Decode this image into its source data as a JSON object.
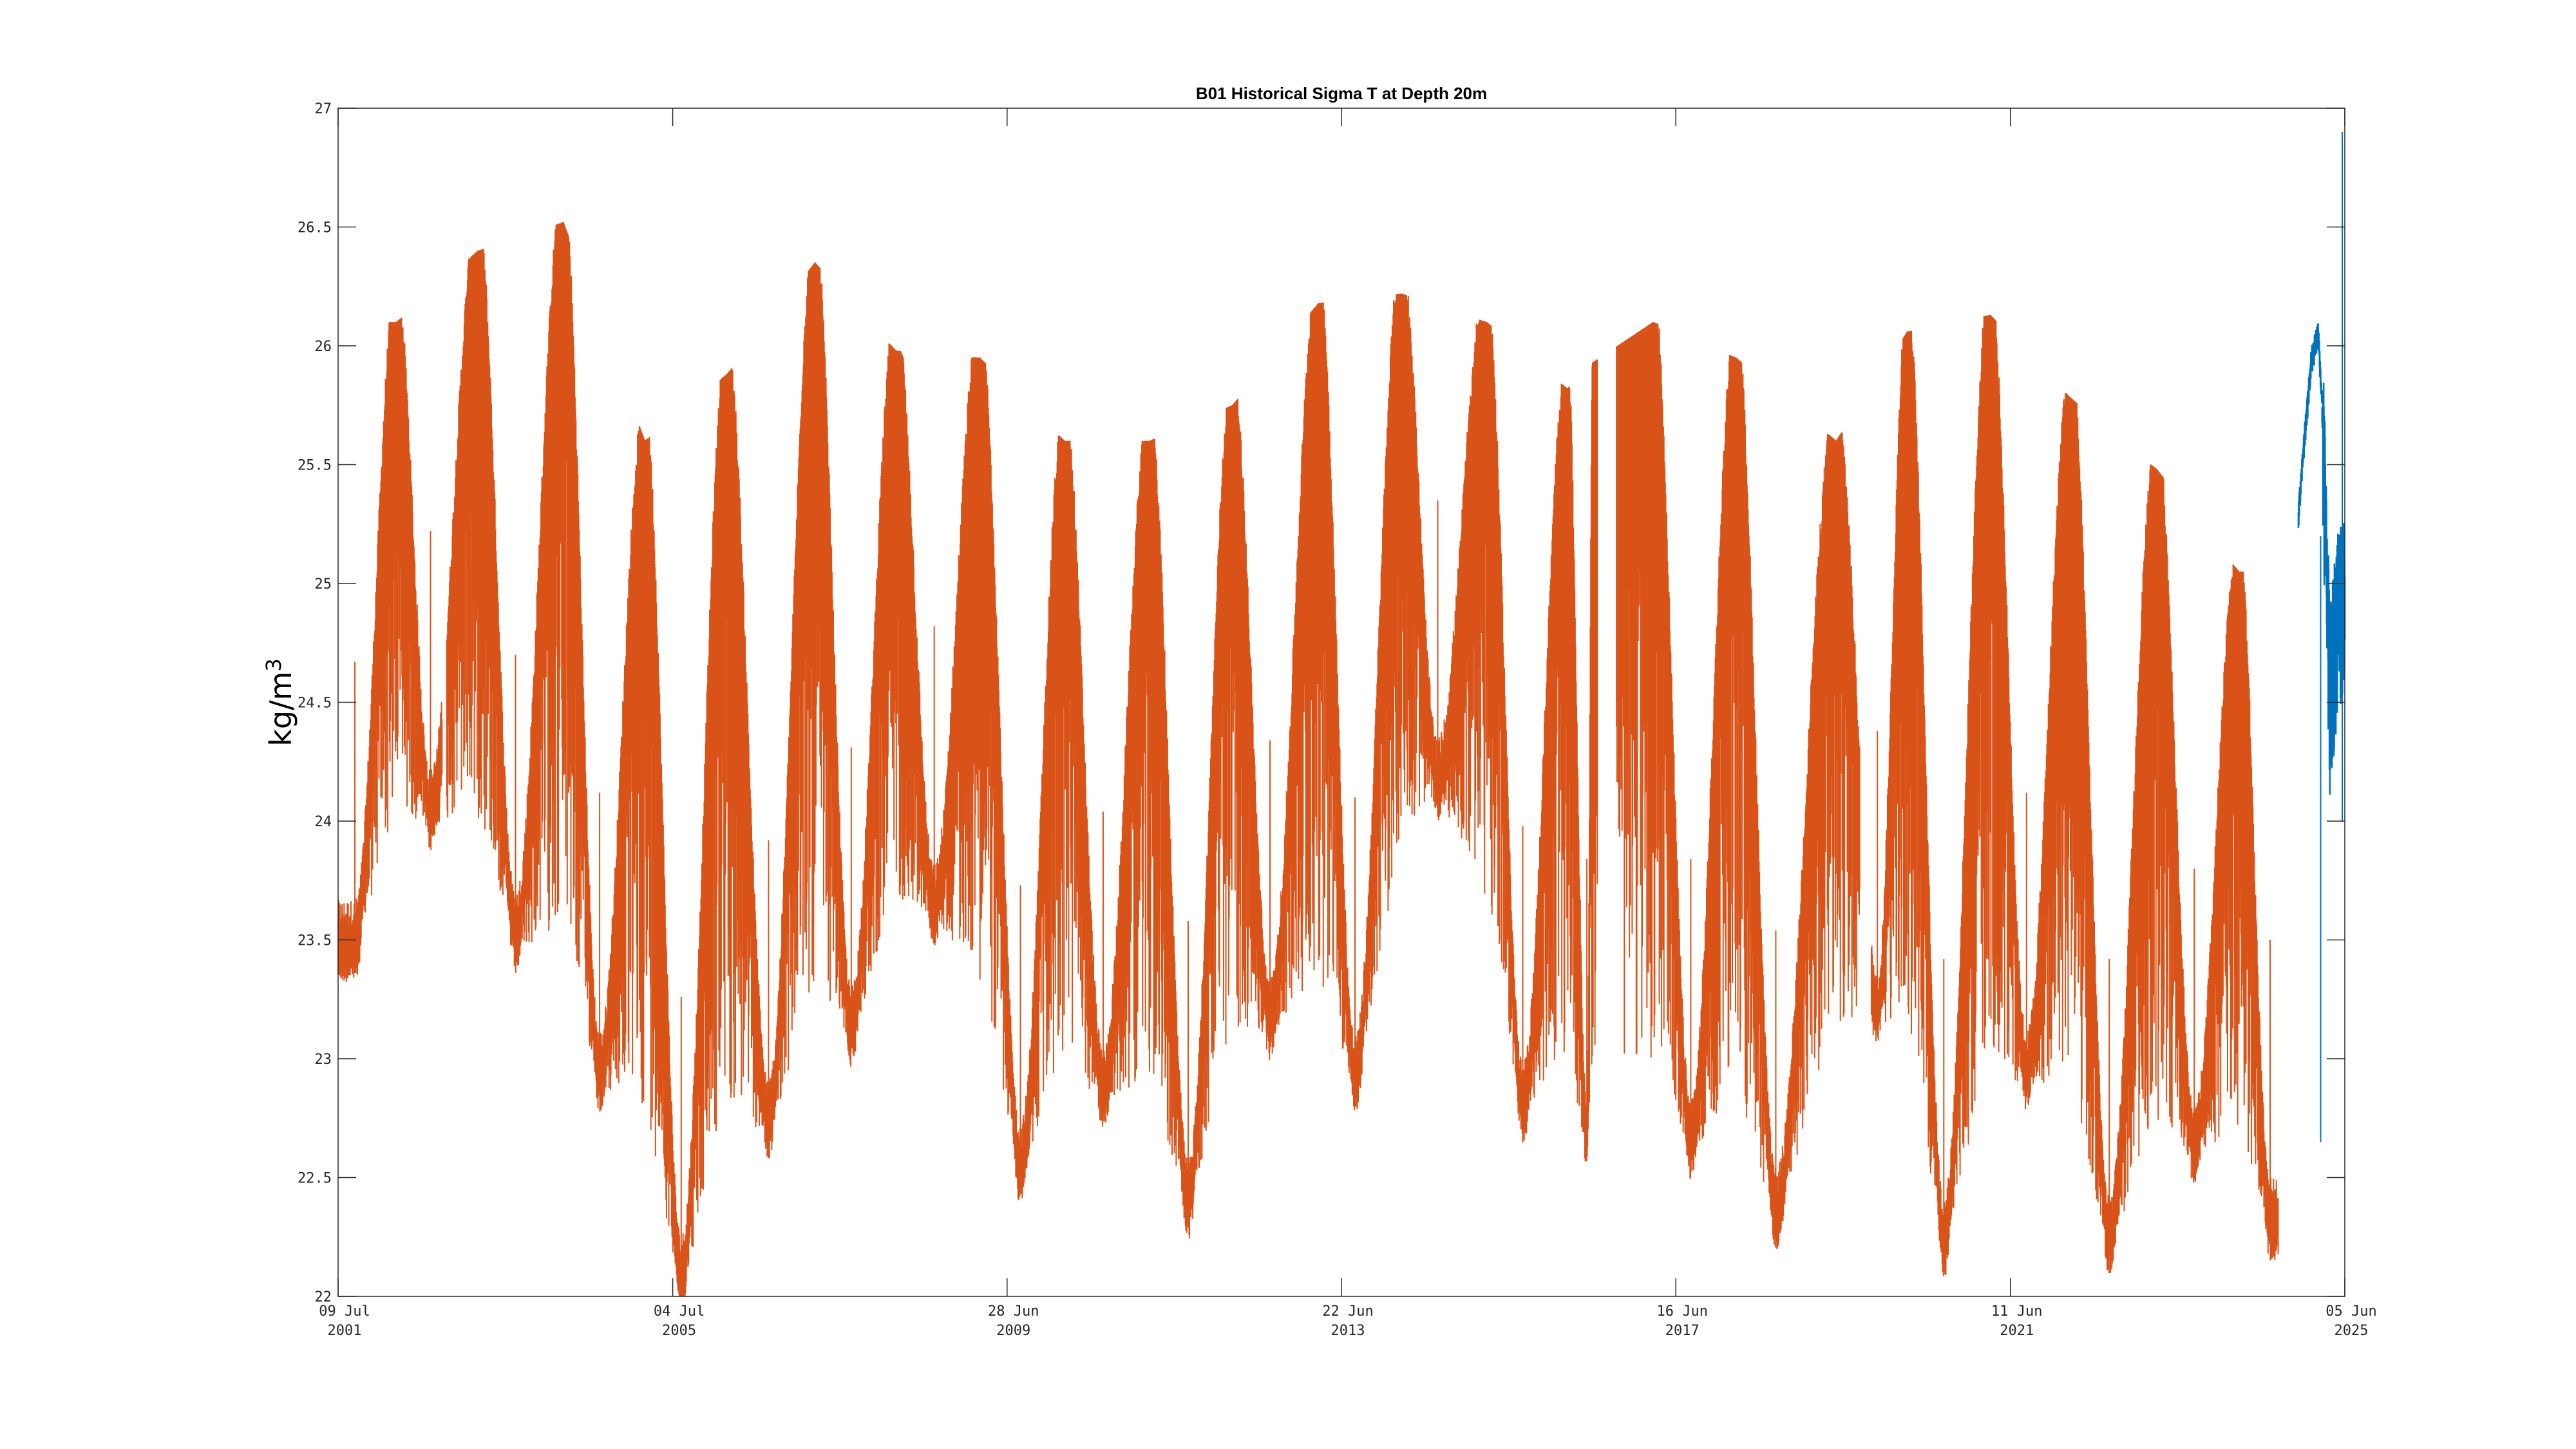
{
  "chart_data": {
    "type": "line",
    "title": "B01 Historical Sigma T at Depth 20m",
    "xlabel": "",
    "ylabel": "kg/m",
    "ylabel_superscript": "3",
    "ylim": [
      22,
      27
    ],
    "xlim": [
      "2001-07-09",
      "2025-06-05"
    ],
    "yticks": [
      "22",
      "22.5",
      "23",
      "23.5",
      "24",
      "24.5",
      "25",
      "25.5",
      "26",
      "26.5",
      "27"
    ],
    "xticks": [
      {
        "date": "2001-07-09",
        "line1": "09 Jul",
        "line2": "2001"
      },
      {
        "date": "2005-07-04",
        "line1": "04 Jul",
        "line2": "2005"
      },
      {
        "date": "2009-06-28",
        "line1": "28 Jun",
        "line2": "2009"
      },
      {
        "date": "2013-06-22",
        "line1": "22 Jun",
        "line2": "2013"
      },
      {
        "date": "2017-06-16",
        "line1": "16 Jun",
        "line2": "2017"
      },
      {
        "date": "2021-06-11",
        "line1": "11 Jun",
        "line2": "2021"
      },
      {
        "date": "2025-06-05",
        "line1": "05 Jun",
        "line2": "2025"
      }
    ],
    "grid": false,
    "series": [
      {
        "color": "#d95319",
        "description": "historical record, seasonal cycle",
        "segments": [
          {
            "start": "2001-07-09",
            "end": "2002-10-05"
          },
          {
            "start": "2002-10-25",
            "end": "2016-07-10"
          },
          {
            "start": "2016-10-01",
            "end": "2019-08-25"
          },
          {
            "start": "2019-10-15",
            "end": "2024-08-20"
          }
        ],
        "annual_max": [
          {
            "date": "2002-03-20",
            "value": 26.1
          },
          {
            "date": "2003-03-10",
            "value": 26.4
          },
          {
            "date": "2004-03-15",
            "value": 26.52
          },
          {
            "date": "2005-03-05",
            "value": 25.6
          },
          {
            "date": "2006-02-25",
            "value": 25.88
          },
          {
            "date": "2007-03-15",
            "value": 26.35
          },
          {
            "date": "2008-03-01",
            "value": 25.98
          },
          {
            "date": "2009-03-01",
            "value": 25.95
          },
          {
            "date": "2010-03-05",
            "value": 25.6
          },
          {
            "date": "2011-03-10",
            "value": 25.6
          },
          {
            "date": "2012-03-05",
            "value": 25.75
          },
          {
            "date": "2013-03-15",
            "value": 26.18
          },
          {
            "date": "2014-03-10",
            "value": 26.22
          },
          {
            "date": "2015-03-15",
            "value": 26.1
          },
          {
            "date": "2016-03-01",
            "value": 25.82
          },
          {
            "date": "2016-06-20",
            "value": 25.93
          },
          {
            "date": "2017-03-10",
            "value": 26.1
          },
          {
            "date": "2018-03-05",
            "value": 25.95
          },
          {
            "date": "2019-05-15",
            "value": 25.6
          },
          {
            "date": "2020-03-20",
            "value": 26.06
          },
          {
            "date": "2021-03-15",
            "value": 26.13
          },
          {
            "date": "2022-03-01",
            "value": 25.78
          },
          {
            "date": "2023-03-10",
            "value": 25.48
          },
          {
            "date": "2024-03-01",
            "value": 25.05
          }
        ],
        "annual_min": [
          {
            "date": "2001-09-20",
            "value": 23.47
          },
          {
            "date": "2002-08-15",
            "value": 24.02
          },
          {
            "date": "2003-08-20",
            "value": 23.5
          },
          {
            "date": "2004-08-20",
            "value": 22.92
          },
          {
            "date": "2005-08-10",
            "value": 22.06
          },
          {
            "date": "2006-08-25",
            "value": 22.72
          },
          {
            "date": "2007-08-20",
            "value": 23.11
          },
          {
            "date": "2008-08-15",
            "value": 23.62
          },
          {
            "date": "2009-08-25",
            "value": 22.53
          },
          {
            "date": "2010-08-20",
            "value": 22.84
          },
          {
            "date": "2011-08-25",
            "value": 22.38
          },
          {
            "date": "2012-08-15",
            "value": 23.14
          },
          {
            "date": "2013-08-20",
            "value": 22.9
          },
          {
            "date": "2014-08-15",
            "value": 24.15
          },
          {
            "date": "2015-08-20",
            "value": 22.78
          },
          {
            "date": "2016-05-25",
            "value": 22.64
          },
          {
            "date": "2017-08-20",
            "value": 22.64
          },
          {
            "date": "2018-08-25",
            "value": 22.34
          },
          {
            "date": "2019-11-10",
            "value": 23.18
          },
          {
            "date": "2020-08-25",
            "value": 22.22
          },
          {
            "date": "2021-08-20",
            "value": 22.92
          },
          {
            "date": "2022-08-15",
            "value": 22.22
          },
          {
            "date": "2023-08-20",
            "value": 22.6
          },
          {
            "date": "2024-07-15",
            "value": 22.3
          }
        ]
      },
      {
        "color": "#0072bd",
        "description": "recent record",
        "segments": [
          {
            "start": "2024-11-15",
            "end": "2025-06-05"
          }
        ],
        "points": [
          {
            "date": "2024-11-15",
            "value": 25.3
          },
          {
            "date": "2024-12-10",
            "value": 25.6
          },
          {
            "date": "2025-01-10",
            "value": 25.95
          },
          {
            "date": "2025-02-10",
            "value": 26.06
          },
          {
            "date": "2025-03-05",
            "value": 25.6
          },
          {
            "date": "2025-04-01",
            "value": 24.6
          },
          {
            "date": "2025-05-01",
            "value": 24.9
          },
          {
            "date": "2025-06-01",
            "value": 25.0
          }
        ],
        "min": 22.65,
        "max": 26.9
      }
    ]
  },
  "colors": {
    "axis": "#262626",
    "background": "#ffffff"
  }
}
